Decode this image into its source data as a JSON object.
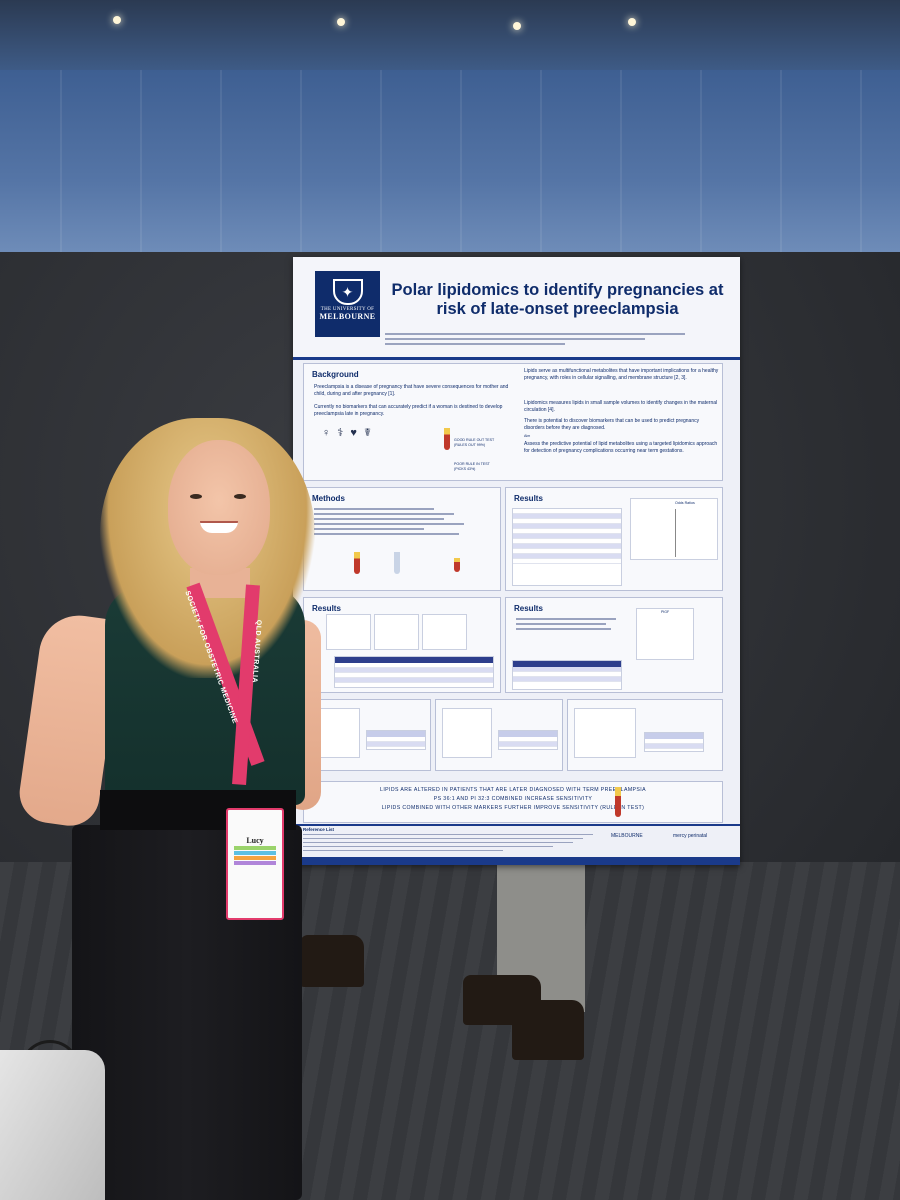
{
  "poster": {
    "logo": {
      "line1": "THE UNIVERSITY OF",
      "line2": "MELBOURNE"
    },
    "title": "Polar lipidomics to identify pregnancies at risk of late-onset preeclampsia",
    "background": {
      "heading": "Background",
      "bullets": [
        "Preeclampsia is a disease of pregnancy that have severe consequences for mother and child, during and after pregnancy [1].",
        "Currently no biomarkers that can accurately predict if a woman is destined to develop preeclampsia late in pregnancy.",
        "Lipids serve as multifunctional metabolites that have important implications for a healthy pregnancy, with roles in cellular signalling, and membrane structure [2, 3].",
        "Lipidomics measures lipids in small sample volumes to identify changes in the maternal circulation [4].",
        "There is potential to discover biomarkers that can be used to predict pregnancy disorders before they are diagnosed.",
        "Assess the predictive potential of lipid metabolites using a targeted lipidomics approach for detection of pregnancy complications occurring near term gestations."
      ],
      "aim_label": "Aim",
      "rule_out": "GOOD RULE OUT TEST (RULES OUT 99%)",
      "rule_in": "POOR RULE IN TEST (PICKS 43%)"
    },
    "methods": {
      "heading": "Methods"
    },
    "results": {
      "heading": "Results"
    },
    "odds_ratios_label": "Odds Ratios",
    "plgf_label": "PlGF",
    "conclusions": [
      "LIPIDS ARE ALTERED IN PATIENTS THAT ARE LATER DIAGNOSED WITH TERM PREECLAMPSIA",
      "PS 36:1 AND PI 32:3 COMBINED INCREASE SENSITIVITY",
      "LIPIDS COMBINED WITH OTHER MARKERS FURTHER IMPROVE SENSITIVITY (RULE IN TEST)"
    ],
    "reference_heading": "Reference List",
    "sponsors": {
      "university": "MELBOURNE",
      "hospital": "mercy perinatal"
    }
  },
  "badge": {
    "first_name": "Lucy",
    "stripe_colors": [
      "#9ad36b",
      "#5cc0e4",
      "#f4a341",
      "#b085d9"
    ]
  },
  "lanyard": {
    "text_left": "SOCIETY FOR OBSTETRIC MEDICINE",
    "text_right": "QLD AUSTRALIA",
    "color": "#e23b6c"
  },
  "colors": {
    "poster_navy": "#0f2c6b",
    "top_green": "#1a3b36"
  }
}
